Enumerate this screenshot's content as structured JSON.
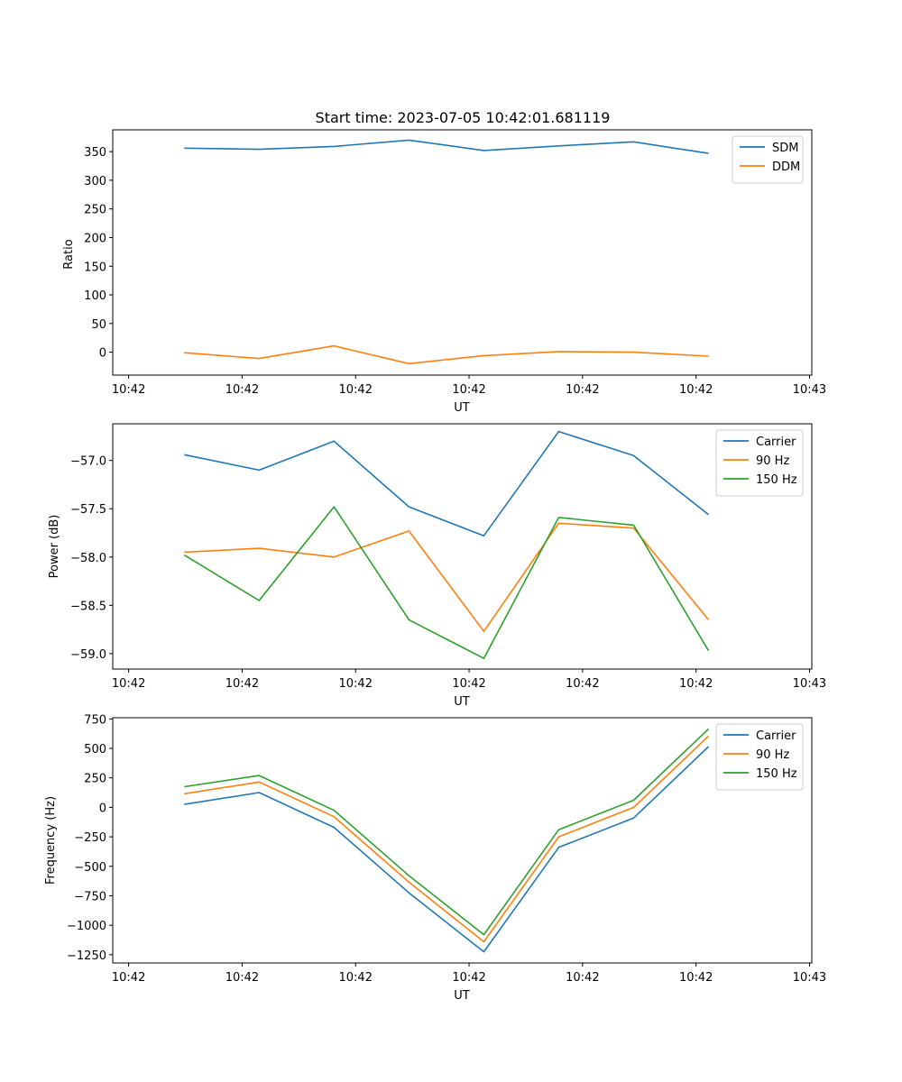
{
  "chart_data": [
    {
      "type": "line",
      "title": "Start time: 2023-07-05 10:42:01.681119",
      "xlabel": "UT",
      "ylabel": "Ratio",
      "ylim": [
        -40,
        388
      ],
      "yticks": [
        0,
        50,
        100,
        150,
        200,
        250,
        300,
        350
      ],
      "ytick_labels": [
        "0",
        "50",
        "100",
        "150",
        "200",
        "250",
        "300",
        "350"
      ],
      "xticks": [
        0,
        1,
        2,
        3,
        4,
        5,
        6
      ],
      "xtick_labels": [
        "10:42",
        "10:42",
        "10:42",
        "10:42",
        "10:42",
        "10:42",
        "10:43"
      ],
      "xlim": [
        -0.14,
        6.02
      ],
      "x": [
        0.49,
        1.15,
        1.81,
        2.47,
        3.13,
        3.79,
        4.45,
        5.11
      ],
      "legend": "top-right",
      "series": [
        {
          "name": "SDM",
          "color": "#1f77b4",
          "values": [
            356,
            354,
            359,
            370,
            352,
            360,
            367,
            347
          ]
        },
        {
          "name": "DDM",
          "color": "#ff7f0e",
          "values": [
            -1,
            -11,
            11,
            -20,
            -6,
            1,
            0,
            -7
          ]
        }
      ]
    },
    {
      "type": "line",
      "title": "",
      "xlabel": "UT",
      "ylabel": "Power (dB)",
      "ylim": [
        -59.16,
        -56.62
      ],
      "yticks": [
        -59.0,
        -58.5,
        -58.0,
        -57.5,
        -57.0
      ],
      "ytick_labels": [
        "−59.0",
        "−58.5",
        "−58.0",
        "−57.5",
        "−57.0"
      ],
      "xticks": [
        0,
        1,
        2,
        3,
        4,
        5,
        6
      ],
      "xtick_labels": [
        "10:42",
        "10:42",
        "10:42",
        "10:42",
        "10:42",
        "10:42",
        "10:43"
      ],
      "xlim": [
        -0.14,
        6.02
      ],
      "x": [
        0.49,
        1.15,
        1.81,
        2.47,
        3.13,
        3.79,
        4.45,
        5.11
      ],
      "legend": "top-right",
      "series": [
        {
          "name": "Carrier",
          "color": "#1f77b4",
          "values": [
            -56.94,
            -57.1,
            -56.8,
            -57.48,
            -57.78,
            -56.7,
            -56.95,
            -57.56
          ]
        },
        {
          "name": "90 Hz",
          "color": "#ff7f0e",
          "values": [
            -57.95,
            -57.91,
            -58.0,
            -57.73,
            -58.77,
            -57.65,
            -57.7,
            -58.65
          ]
        },
        {
          "name": "150 Hz",
          "color": "#2ca02c",
          "values": [
            -57.98,
            -58.45,
            -57.48,
            -58.65,
            -59.05,
            -57.59,
            -57.67,
            -58.97
          ]
        }
      ]
    },
    {
      "type": "line",
      "title": "",
      "xlabel": "UT",
      "ylabel": "Frequency (Hz)",
      "ylim": [
        -1320,
        760
      ],
      "yticks": [
        -1250,
        -1000,
        -750,
        -500,
        -250,
        0,
        250,
        500,
        750
      ],
      "ytick_labels": [
        "−1250",
        "−1000",
        "−750",
        "−500",
        "−250",
        "0",
        "250",
        "500",
        "750"
      ],
      "xticks": [
        0,
        1,
        2,
        3,
        4,
        5,
        6
      ],
      "xtick_labels": [
        "10:42",
        "10:42",
        "10:42",
        "10:42",
        "10:42",
        "10:42",
        "10:43"
      ],
      "xlim": [
        -0.14,
        6.02
      ],
      "x": [
        0.49,
        1.15,
        1.81,
        2.47,
        3.13,
        3.79,
        4.45,
        5.11
      ],
      "legend": "top-right",
      "series": [
        {
          "name": "Carrier",
          "color": "#1f77b4",
          "values": [
            25,
            125,
            -170,
            -725,
            -1225,
            -340,
            -90,
            515
          ]
        },
        {
          "name": "90 Hz",
          "color": "#ff7f0e",
          "values": [
            115,
            215,
            -80,
            -635,
            -1140,
            -250,
            0,
            605
          ]
        },
        {
          "name": "150 Hz",
          "color": "#2ca02c",
          "values": [
            175,
            270,
            -25,
            -580,
            -1080,
            -190,
            60,
            665
          ]
        }
      ]
    }
  ]
}
